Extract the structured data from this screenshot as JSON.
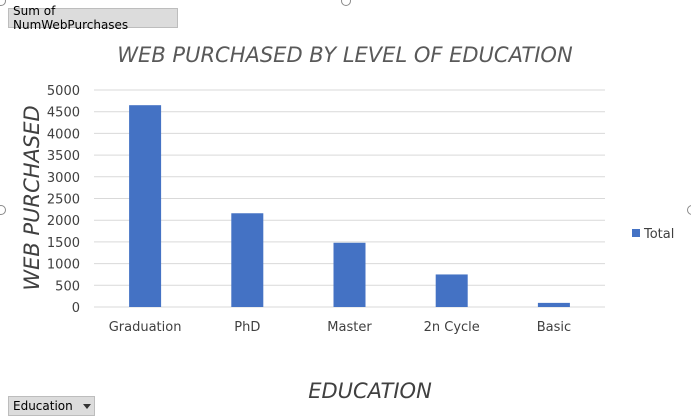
{
  "field_buttons": {
    "values": "Sum of NumWebPurchases",
    "axis": "Education"
  },
  "colors": {
    "bar": "#4472C4",
    "grid": "#d9d9d9",
    "button": "#dcdcdc"
  },
  "chart_data": {
    "type": "bar",
    "title": "WEB PURCHASED BY LEVEL OF EDUCATION",
    "xlabel": "EDUCATION",
    "ylabel": "WEB PURCHASED",
    "categories": [
      "Graduation",
      "PhD",
      "Master",
      "2n Cycle",
      "Basic"
    ],
    "series": [
      {
        "name": "Total",
        "values": [
          4650,
          2160,
          1480,
          750,
          95
        ]
      }
    ],
    "ylim": [
      0,
      5000
    ],
    "yticks": [
      "0",
      "500",
      "1000",
      "1500",
      "2000",
      "2500",
      "3000",
      "3500",
      "4000",
      "4500",
      "5000"
    ],
    "grid": true,
    "legend_position": "right"
  }
}
